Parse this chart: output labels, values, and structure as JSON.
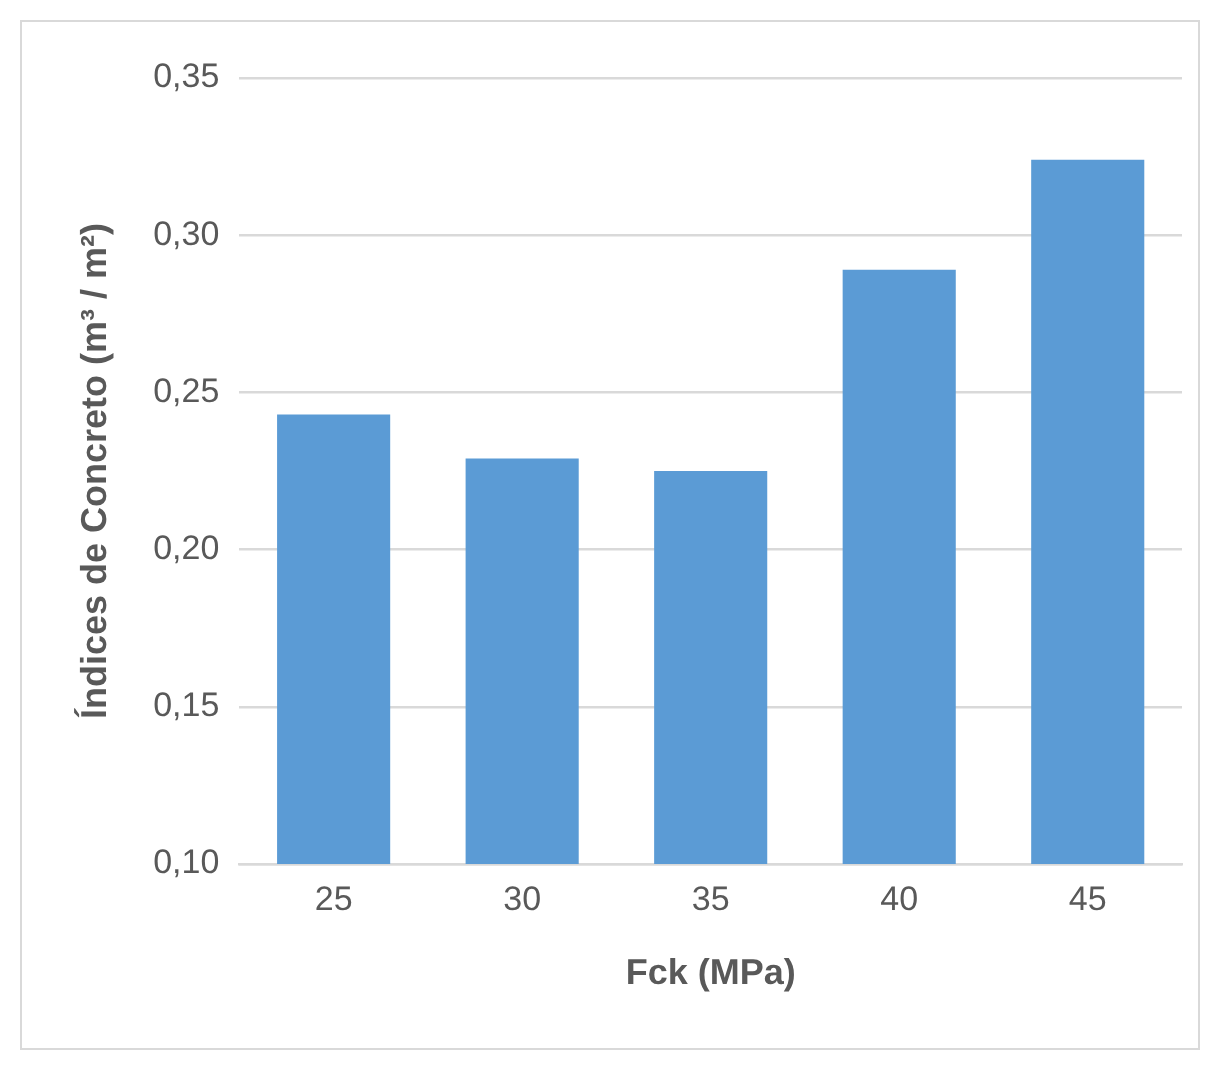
{
  "chart_data": {
    "type": "bar",
    "xlabel": "Fck (MPa)",
    "ylabel": "Índices de Concreto (m³ / m²)",
    "categories": [
      "25",
      "30",
      "35",
      "40",
      "45"
    ],
    "values": [
      0.243,
      0.229,
      0.225,
      0.289,
      0.324
    ],
    "color": "#5b9bd5",
    "ylim": [
      0.1,
      0.35
    ],
    "yticks": [
      {
        "value": 0.1,
        "label": "0,10"
      },
      {
        "value": 0.15,
        "label": "0,15"
      },
      {
        "value": 0.2,
        "label": "0,20"
      },
      {
        "value": 0.25,
        "label": "0,25"
      },
      {
        "value": 0.3,
        "label": "0,30"
      },
      {
        "value": 0.35,
        "label": "0,35"
      }
    ],
    "grid": "y",
    "legend": false
  }
}
